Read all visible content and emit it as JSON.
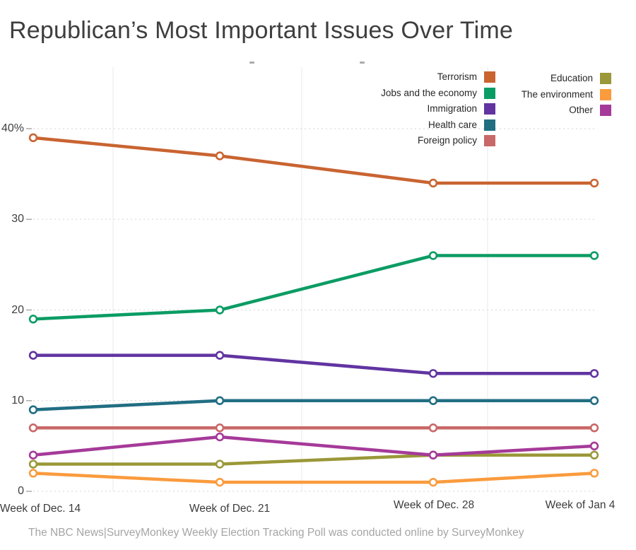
{
  "chart_data": {
    "type": "line",
    "title": "Republican’s Most Important Issues Over Time",
    "x_categories": [
      "Week of Dec. 14",
      "Week of Dec. 21",
      "Week of Dec. 28",
      "Week of Jan 4"
    ],
    "ylim": [
      0,
      40
    ],
    "yticks": [
      {
        "value": 0,
        "label": "0"
      },
      {
        "value": 10,
        "label": "10"
      },
      {
        "value": 20,
        "label": "20"
      },
      {
        "value": 30,
        "label": "30"
      },
      {
        "value": 40,
        "label": "40%"
      }
    ],
    "grid": {
      "horizontal": "dashed",
      "vertical": "faint-solid"
    },
    "legend_position": "top-right-two-columns",
    "series": [
      {
        "name": "Terrorism",
        "color": "#C96431",
        "values": [
          39,
          37,
          34,
          34
        ]
      },
      {
        "name": "Jobs and the economy",
        "color": "#0B9C64",
        "values": [
          19,
          20,
          26,
          26
        ]
      },
      {
        "name": "Immigration",
        "color": "#6134A1",
        "values": [
          15,
          15,
          13,
          13
        ]
      },
      {
        "name": "Health care",
        "color": "#216E83",
        "values": [
          9,
          10,
          10,
          10
        ]
      },
      {
        "name": "Foreign policy",
        "color": "#C96868",
        "values": [
          7,
          7,
          7,
          7
        ]
      },
      {
        "name": "Education",
        "color": "#9A9838",
        "values": [
          3,
          3,
          4,
          4
        ]
      },
      {
        "name": "The environment",
        "color": "#FA9B3D",
        "values": [
          2,
          1,
          1,
          2
        ]
      },
      {
        "name": "Other",
        "color": "#A53A99",
        "values": [
          4,
          6,
          4,
          5
        ]
      }
    ],
    "source_note": "The NBC News|SurveyMonkey Weekly Election Tracking Poll was conducted online by SurveyMonkey"
  }
}
